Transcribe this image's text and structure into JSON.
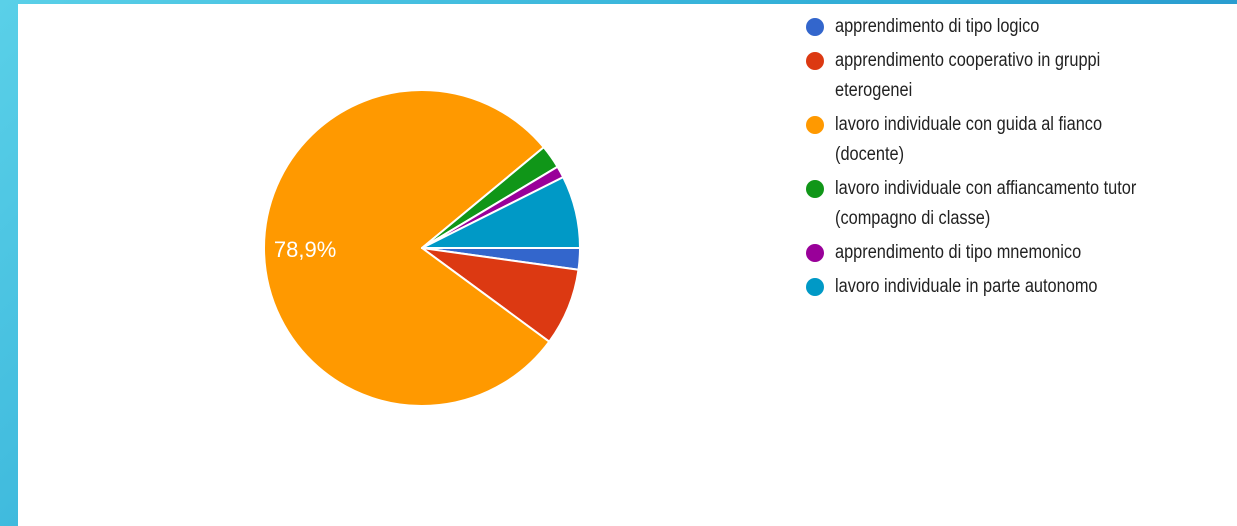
{
  "chart_data": {
    "type": "pie",
    "title": "",
    "slices": [
      {
        "label": "apprendimento di tipo logico",
        "value": 2.2,
        "color": "#3366cc"
      },
      {
        "label": "apprendimento cooperativo in gruppi eterogenei",
        "value": 7.9,
        "color": "#dc3912"
      },
      {
        "label": "lavoro individuale con guida al fianco (docente)",
        "value": 78.9,
        "color": "#ff9900",
        "data_label": "78,9%"
      },
      {
        "label": "lavoro individuale con affiancamento tutor (compagno di classe)",
        "value": 2.4,
        "color": "#109618"
      },
      {
        "label": "apprendimento di tipo mnemonico",
        "value": 1.2,
        "color": "#990099"
      },
      {
        "label": "lavoro individuale in parte autonomo",
        "value": 7.4,
        "color": "#0099c6"
      }
    ],
    "legend_position": "right"
  }
}
